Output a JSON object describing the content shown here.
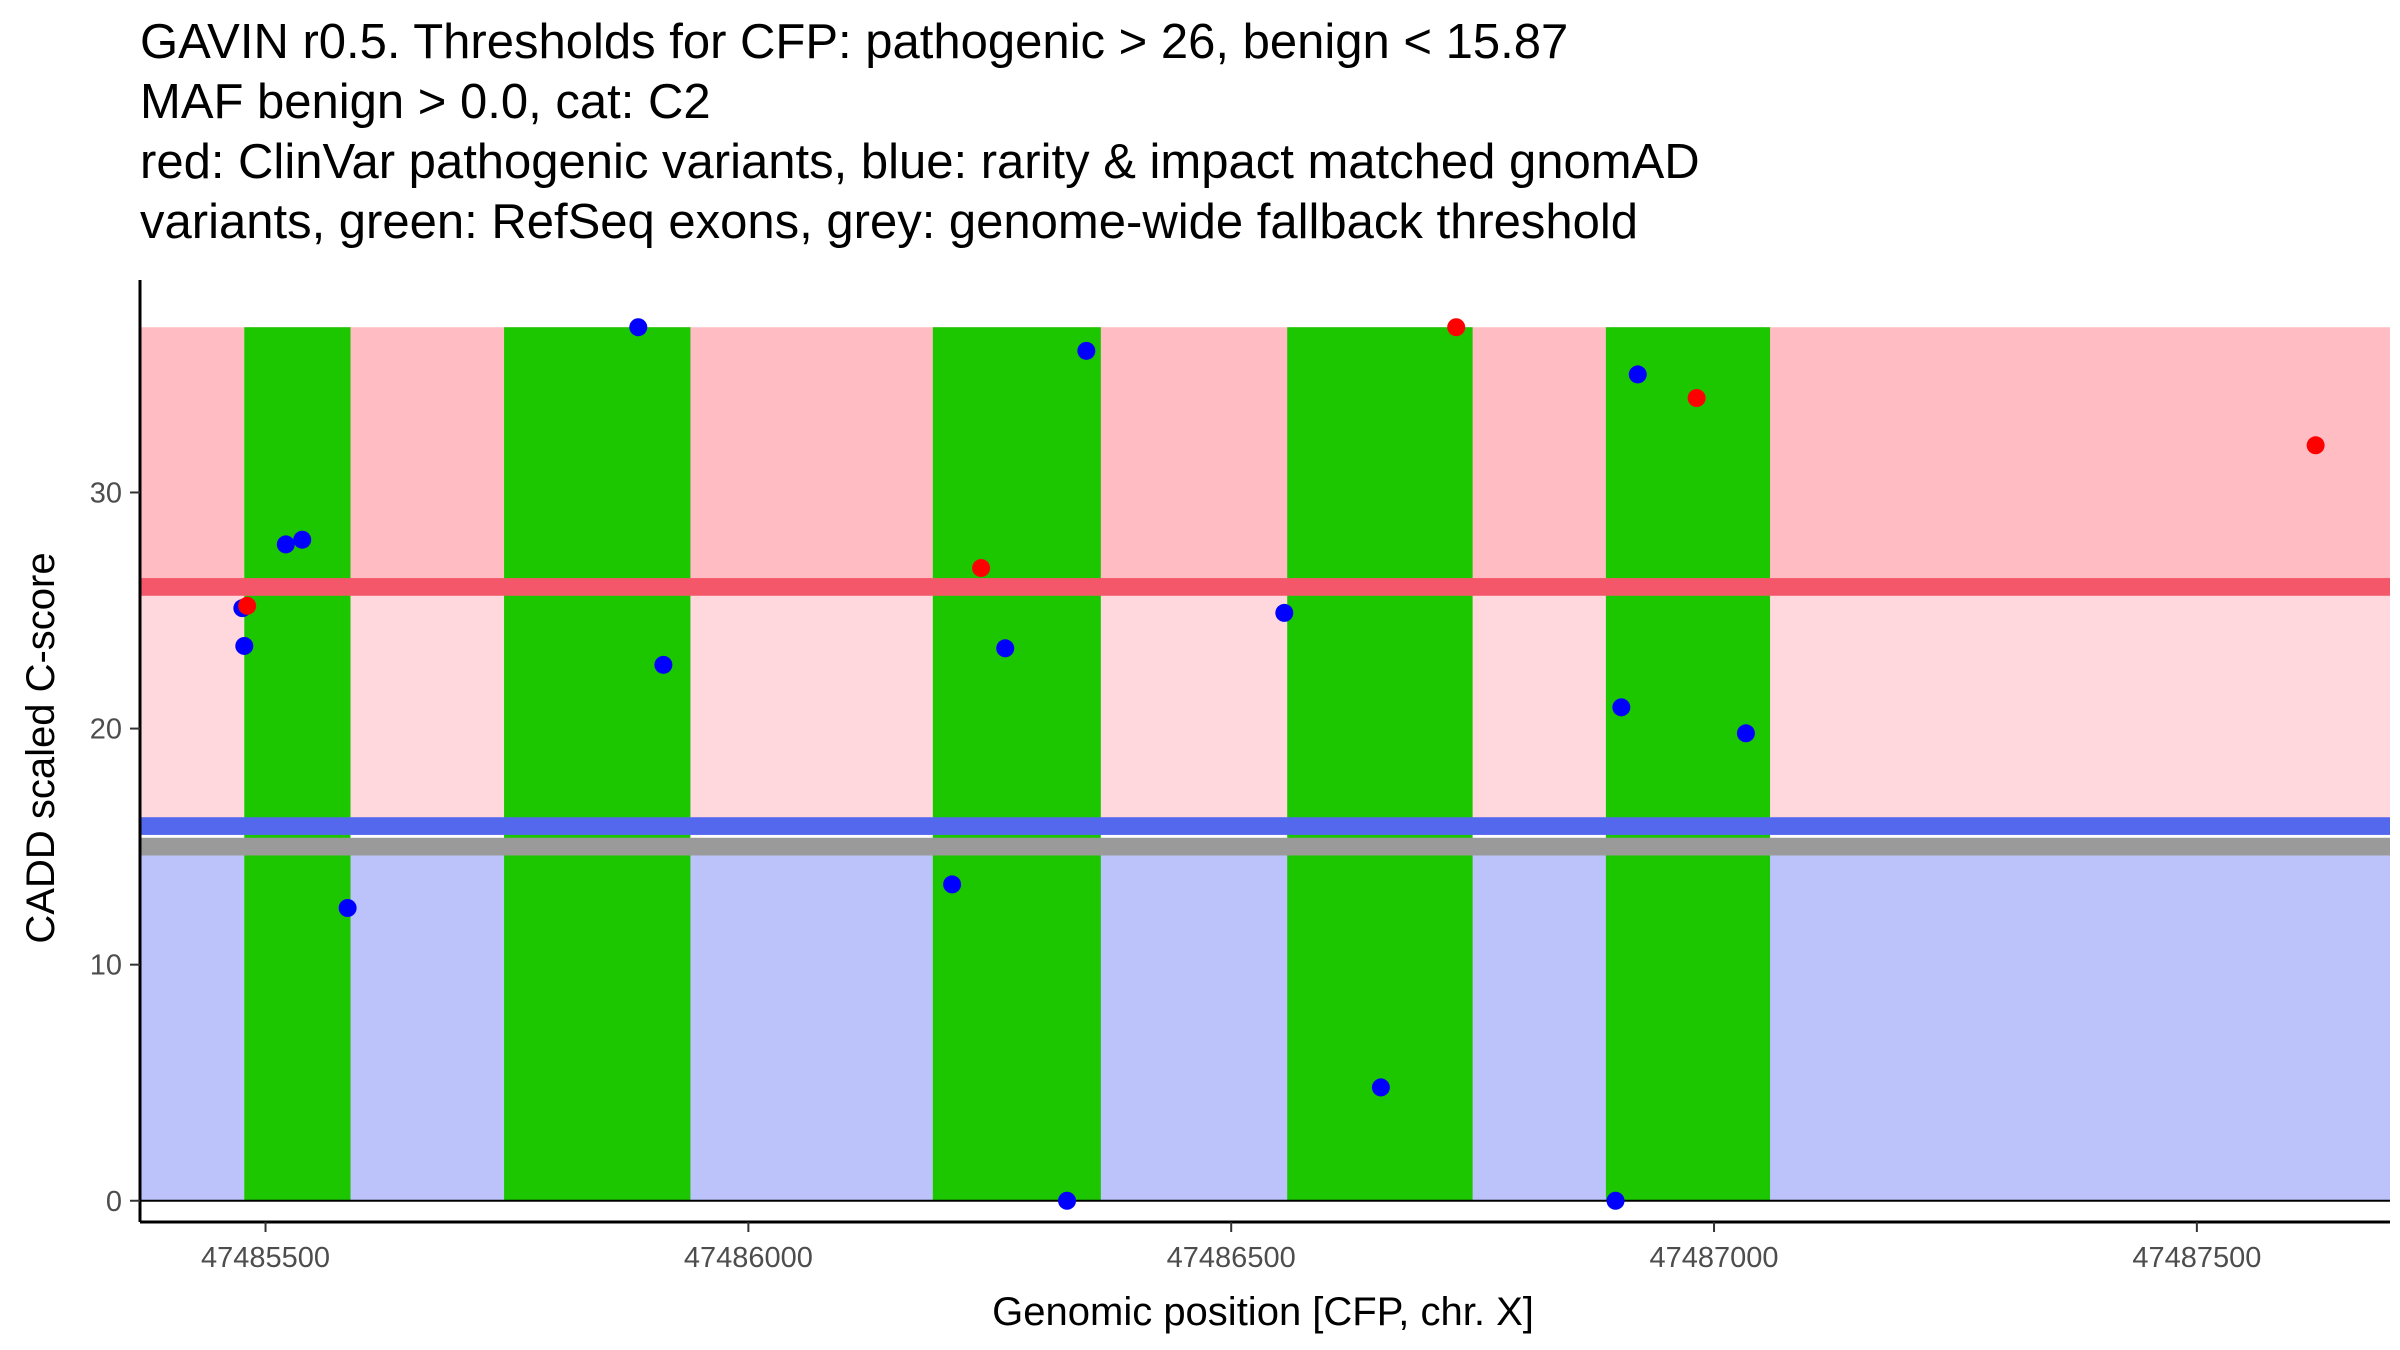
{
  "title_lines": [
    "GAVIN r0.5. Thresholds for CFP: pathogenic > 26, benign < 15.87",
    "MAF benign > 0.0, cat: C2",
    "red: ClinVar pathogenic variants, blue: rarity & impact matched gnomAD",
    "variants, green: RefSeq exons, grey: genome-wide fallback threshold"
  ],
  "chart_data": {
    "type": "scatter",
    "xlabel": "Genomic position [CFP, chr. X]",
    "ylabel": "CADD scaled C-score",
    "xlim": [
      47485370,
      47487700
    ],
    "ylim": [
      -0.9,
      39
    ],
    "x_ticks": [
      47485500,
      47486000,
      47486500,
      47487000,
      47487500
    ],
    "y_ticks": [
      0,
      10,
      20,
      30
    ],
    "grid": false,
    "colors": {
      "pathogenic_zone": "#ffbdc3",
      "middle_zone": "#ffd8dd",
      "benign_zone": "#bcc3fb",
      "pathogenic_line": "#f5576a",
      "benign_line": "#5468ee",
      "fallback_line": "#9a9a9a",
      "exon": "#1dc700",
      "pathogenic_point": "#ff0000",
      "benign_point": "#0000ff"
    },
    "bands": [
      {
        "name": "pathogenic",
        "y_from": 26.2,
        "y_to": 37
      },
      {
        "name": "middle",
        "y_from": 16.2,
        "y_to": 26.2
      },
      {
        "name": "benign",
        "y_from": 0,
        "y_to": 15.3
      }
    ],
    "threshold_lines": [
      {
        "name": "pathogenic-threshold",
        "y": 26.0,
        "width": 0.75
      },
      {
        "name": "benign-threshold",
        "y": 15.87,
        "width": 0.75
      },
      {
        "name": "fallback-threshold",
        "y": 15.0,
        "width": 0.75
      }
    ],
    "exons": [
      {
        "start": 47485478,
        "end": 47485588
      },
      {
        "start": 47485747,
        "end": 47485940
      },
      {
        "start": 47486191,
        "end": 47486365
      },
      {
        "start": 47486558,
        "end": 47486750
      },
      {
        "start": 47486888,
        "end": 47487058
      }
    ],
    "series": [
      {
        "name": "gnomAD",
        "color": "benign_point",
        "points": [
          [
            47485476,
            25.1
          ],
          [
            47485478,
            23.5
          ],
          [
            47485521,
            27.8
          ],
          [
            47485538,
            28.0
          ],
          [
            47485585,
            12.4
          ],
          [
            47485886,
            37.0
          ],
          [
            47485912,
            22.7
          ],
          [
            47486211,
            13.4
          ],
          [
            47486266,
            23.4
          ],
          [
            47486330,
            0.0
          ],
          [
            47486350,
            36.0
          ],
          [
            47486555,
            24.9
          ],
          [
            47486655,
            4.8
          ],
          [
            47486898,
            0.0
          ],
          [
            47486904,
            20.9
          ],
          [
            47486921,
            35.0
          ],
          [
            47487033,
            19.8
          ]
        ]
      },
      {
        "name": "ClinVar pathogenic",
        "color": "pathogenic_point",
        "points": [
          [
            47485481,
            25.2
          ],
          [
            47486241,
            26.8
          ],
          [
            47486733,
            37.0
          ],
          [
            47486982,
            34.0
          ],
          [
            47487623,
            32.0
          ]
        ]
      }
    ]
  }
}
